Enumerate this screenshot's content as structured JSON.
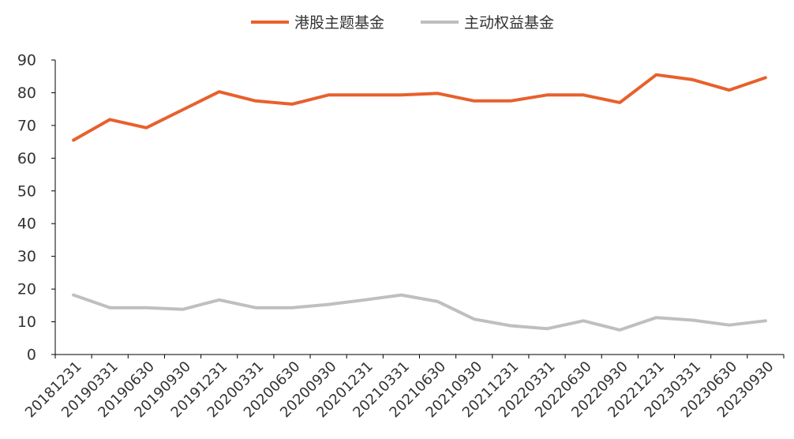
{
  "chart_data": {
    "type": "line",
    "title": "",
    "xlabel": "",
    "ylabel": "",
    "ylim": [
      0,
      90
    ],
    "yticks": [
      0,
      10,
      20,
      30,
      40,
      50,
      60,
      70,
      80,
      90
    ],
    "grid": false,
    "legend_position": "top-center",
    "x": [
      "20181231",
      "20190331",
      "20190630",
      "20190930",
      "20191231",
      "20200331",
      "20200630",
      "20200930",
      "20201231",
      "20210331",
      "20210630",
      "20210930",
      "20211231",
      "20220331",
      "20220630",
      "20220930",
      "20221231",
      "20230331",
      "20230630",
      "20230930"
    ],
    "series": [
      {
        "name": "港股主题基金",
        "color": "#E8602C",
        "values": [
          65.5,
          71.8,
          69.3,
          74.8,
          80.3,
          77.5,
          76.5,
          79.3,
          79.3,
          79.3,
          79.8,
          77.5,
          77.5,
          79.3,
          79.3,
          77.0,
          85.5,
          84.0,
          80.8,
          84.6
        ]
      },
      {
        "name": "主动权益基金",
        "color": "#BFBFBF",
        "values": [
          18.2,
          14.3,
          14.3,
          13.8,
          16.7,
          14.3,
          14.3,
          15.3,
          16.7,
          18.2,
          16.2,
          10.8,
          8.8,
          7.9,
          10.3,
          7.5,
          11.3,
          10.5,
          9.0,
          10.3
        ]
      }
    ]
  }
}
